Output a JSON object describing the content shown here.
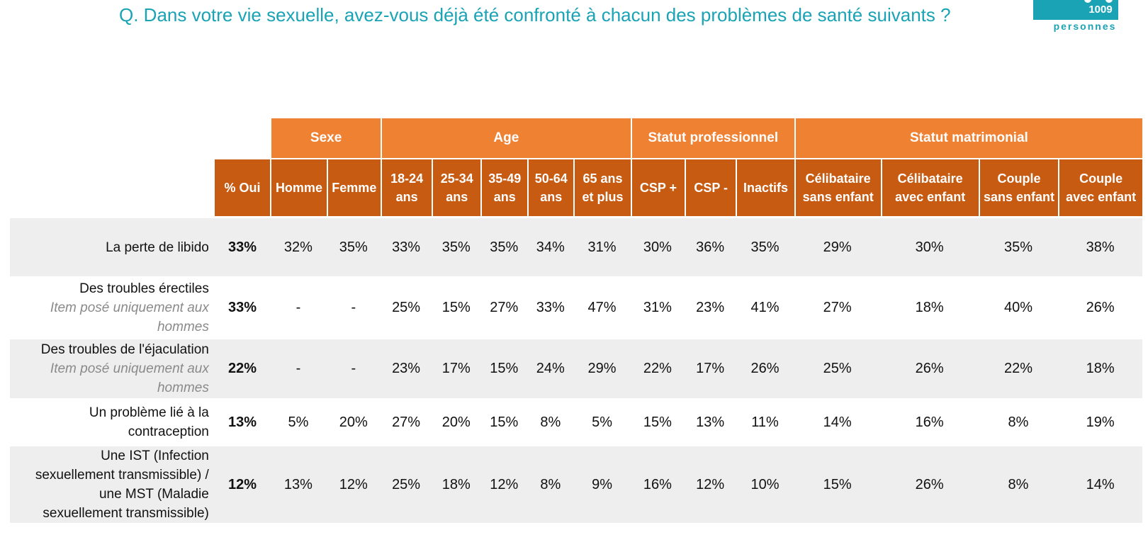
{
  "question": "Q. Dans votre vie sexuelle, avez-vous déjà été confronté à chacun des problèmes de santé suivants ?",
  "sample": {
    "count": "1009",
    "label": "personnes",
    "color": "#1aa3b5"
  },
  "colors": {
    "group_header": "#ef8133",
    "sub_header": "#c85b12",
    "row_shade": "#eeeeee",
    "note_text": "#8a8a8a"
  },
  "groups": [
    "Sexe",
    "Age",
    "Statut professionnel",
    "Statut matrimonial"
  ],
  "columns": {
    "total": "% Oui",
    "homme": "Homme",
    "femme": "Femme",
    "a1824_l1": "18-24",
    "a1824_l2": "ans",
    "a2534_l1": "25-34",
    "a2534_l2": "ans",
    "a3549_l1": "35-49",
    "a3549_l2": "ans",
    "a5064_l1": "50-64",
    "a5064_l2": "ans",
    "a65_l1": "65 ans",
    "a65_l2": "et plus",
    "csp_plus": "CSP +",
    "csp_moins": "CSP -",
    "inactifs": "Inactifs",
    "cel_sans_l1": "Célibataire",
    "cel_sans_l2": "sans enfant",
    "cel_avec_l1": "Célibataire",
    "cel_avec_l2": "avec enfant",
    "cou_sans_l1": "Couple",
    "cou_sans_l2": "sans enfant",
    "cou_avec_l1": "Couple",
    "cou_avec_l2": "avec enfant"
  },
  "rows": [
    {
      "label_lines": [
        "La perte de libido"
      ],
      "note_lines": [],
      "values": [
        "33%",
        "32%",
        "35%",
        "33%",
        "35%",
        "35%",
        "34%",
        "31%",
        "30%",
        "36%",
        "35%",
        "29%",
        "30%",
        "35%",
        "38%"
      ]
    },
    {
      "label_lines": [
        "Des troubles érectiles"
      ],
      "note_lines": [
        "Item posé uniquement aux",
        "hommes"
      ],
      "values": [
        "33%",
        "-",
        "-",
        "25%",
        "15%",
        "27%",
        "33%",
        "47%",
        "31%",
        "23%",
        "41%",
        "27%",
        "18%",
        "40%",
        "26%"
      ]
    },
    {
      "label_lines": [
        "Des troubles de l'éjaculation"
      ],
      "note_lines": [
        "Item posé uniquement aux",
        "hommes"
      ],
      "values": [
        "22%",
        "-",
        "-",
        "23%",
        "17%",
        "15%",
        "24%",
        "29%",
        "22%",
        "17%",
        "26%",
        "25%",
        "26%",
        "22%",
        "18%"
      ]
    },
    {
      "label_lines": [
        "Un problème lié à la",
        "contraception"
      ],
      "note_lines": [],
      "values": [
        "13%",
        "5%",
        "20%",
        "27%",
        "20%",
        "15%",
        "8%",
        "5%",
        "15%",
        "13%",
        "11%",
        "14%",
        "16%",
        "8%",
        "19%"
      ]
    },
    {
      "label_lines": [
        "Une IST (Infection",
        "sexuellement transmissible) /",
        "une MST (Maladie",
        "sexuellement transmissible)"
      ],
      "note_lines": [],
      "values": [
        "12%",
        "13%",
        "12%",
        "25%",
        "18%",
        "12%",
        "8%",
        "9%",
        "16%",
        "12%",
        "10%",
        "15%",
        "26%",
        "8%",
        "14%"
      ]
    }
  ]
}
